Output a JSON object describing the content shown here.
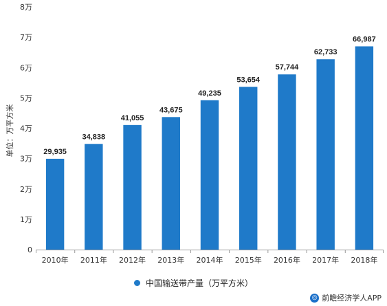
{
  "chart_data": {
    "type": "bar",
    "categories": [
      "2010年",
      "2011年",
      "2012年",
      "2013年",
      "2014年",
      "2015年",
      "2016年",
      "2017年",
      "2018年"
    ],
    "values": [
      29935,
      34838,
      41055,
      43675,
      49235,
      53654,
      57744,
      62733,
      66987
    ],
    "data_labels": [
      "29,935",
      "34,838",
      "41,055",
      "43,675",
      "49,235",
      "53,654",
      "57,744",
      "62,733",
      "66,987"
    ],
    "ylabel": "单位：万平方米",
    "ylim": [
      0,
      80000
    ],
    "yticks": [
      0,
      10000,
      20000,
      30000,
      40000,
      50000,
      60000,
      70000,
      80000
    ],
    "ytick_labels": [
      "0",
      "1万",
      "2万",
      "3万",
      "4万",
      "5万",
      "6万",
      "7万",
      "8万"
    ],
    "grid": false,
    "legend_position": "bottom",
    "series": [
      {
        "name": "中国输送带产量（万平方米）",
        "color": "#1f7ac9"
      }
    ]
  },
  "watermark": {
    "text": "前瞻经济学人APP",
    "icon": "qianzhan-logo-icon"
  },
  "colors": {
    "bar": "#1f7ac9",
    "axis": "#999999",
    "text": "#333333"
  }
}
